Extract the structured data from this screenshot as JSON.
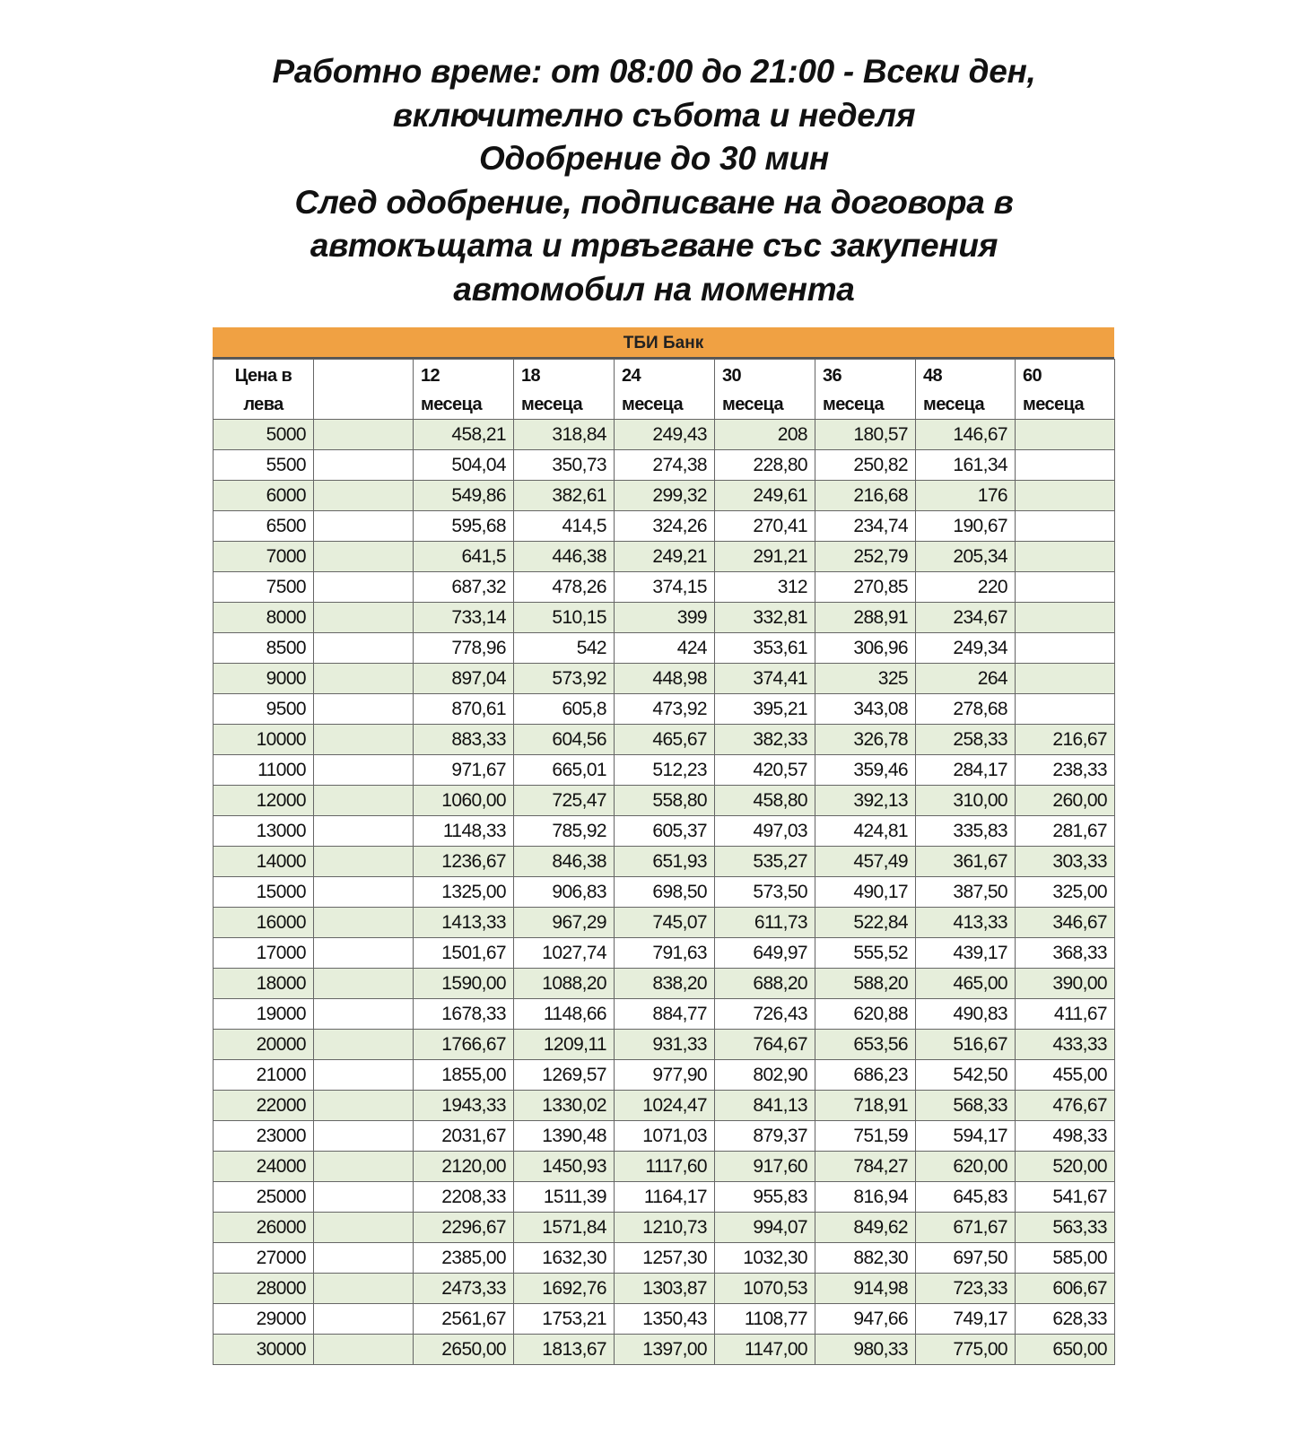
{
  "title_lines": [
    "Работно време: от 08:00 до 21:00 - Всеки ден,",
    "включително събота и неделя",
    "Одобрение до 30 мин",
    "След одобрение, подписване на договора в",
    "автокъщата и трвъгване със закупения",
    "автомобил на момента"
  ],
  "table": {
    "bank_name": "ТБИ Банк",
    "accent_color": "#f0a143",
    "row_stripe_color": "#e6eedb",
    "headers": [
      [
        "Цена в",
        "лева"
      ],
      [
        "",
        ""
      ],
      [
        "12",
        "месеца"
      ],
      [
        "18",
        "месеца"
      ],
      [
        "24",
        "месеца"
      ],
      [
        "30",
        "месеца"
      ],
      [
        "36",
        "месеца"
      ],
      [
        "48",
        "месеца"
      ],
      [
        "60",
        "месеца"
      ]
    ],
    "rows": [
      [
        "5000",
        "",
        "458,21",
        "318,84",
        "249,43",
        "208",
        "180,57",
        "146,67",
        ""
      ],
      [
        "5500",
        "",
        "504,04",
        "350,73",
        "274,38",
        "228,80",
        "250,82",
        "161,34",
        ""
      ],
      [
        "6000",
        "",
        "549,86",
        "382,61",
        "299,32",
        "249,61",
        "216,68",
        "176",
        ""
      ],
      [
        "6500",
        "",
        "595,68",
        "414,5",
        "324,26",
        "270,41",
        "234,74",
        "190,67",
        ""
      ],
      [
        "7000",
        "",
        "641,5",
        "446,38",
        "249,21",
        "291,21",
        "252,79",
        "205,34",
        ""
      ],
      [
        "7500",
        "",
        "687,32",
        "478,26",
        "374,15",
        "312",
        "270,85",
        "220",
        ""
      ],
      [
        "8000",
        "",
        "733,14",
        "510,15",
        "399",
        "332,81",
        "288,91",
        "234,67",
        ""
      ],
      [
        "8500",
        "",
        "778,96",
        "542",
        "424",
        "353,61",
        "306,96",
        "249,34",
        ""
      ],
      [
        "9000",
        "",
        "897,04",
        "573,92",
        "448,98",
        "374,41",
        "325",
        "264",
        ""
      ],
      [
        "9500",
        "",
        "870,61",
        "605,8",
        "473,92",
        "395,21",
        "343,08",
        "278,68",
        ""
      ],
      [
        "10000",
        "",
        "883,33",
        "604,56",
        "465,67",
        "382,33",
        "326,78",
        "258,33",
        "216,67"
      ],
      [
        "11000",
        "",
        "971,67",
        "665,01",
        "512,23",
        "420,57",
        "359,46",
        "284,17",
        "238,33"
      ],
      [
        "12000",
        "",
        "1060,00",
        "725,47",
        "558,80",
        "458,80",
        "392,13",
        "310,00",
        "260,00"
      ],
      [
        "13000",
        "",
        "1148,33",
        "785,92",
        "605,37",
        "497,03",
        "424,81",
        "335,83",
        "281,67"
      ],
      [
        "14000",
        "",
        "1236,67",
        "846,38",
        "651,93",
        "535,27",
        "457,49",
        "361,67",
        "303,33"
      ],
      [
        "15000",
        "",
        "1325,00",
        "906,83",
        "698,50",
        "573,50",
        "490,17",
        "387,50",
        "325,00"
      ],
      [
        "16000",
        "",
        "1413,33",
        "967,29",
        "745,07",
        "611,73",
        "522,84",
        "413,33",
        "346,67"
      ],
      [
        "17000",
        "",
        "1501,67",
        "1027,74",
        "791,63",
        "649,97",
        "555,52",
        "439,17",
        "368,33"
      ],
      [
        "18000",
        "",
        "1590,00",
        "1088,20",
        "838,20",
        "688,20",
        "588,20",
        "465,00",
        "390,00"
      ],
      [
        "19000",
        "",
        "1678,33",
        "1148,66",
        "884,77",
        "726,43",
        "620,88",
        "490,83",
        "411,67"
      ],
      [
        "20000",
        "",
        "1766,67",
        "1209,11",
        "931,33",
        "764,67",
        "653,56",
        "516,67",
        "433,33"
      ],
      [
        "21000",
        "",
        "1855,00",
        "1269,57",
        "977,90",
        "802,90",
        "686,23",
        "542,50",
        "455,00"
      ],
      [
        "22000",
        "",
        "1943,33",
        "1330,02",
        "1024,47",
        "841,13",
        "718,91",
        "568,33",
        "476,67"
      ],
      [
        "23000",
        "",
        "2031,67",
        "1390,48",
        "1071,03",
        "879,37",
        "751,59",
        "594,17",
        "498,33"
      ],
      [
        "24000",
        "",
        "2120,00",
        "1450,93",
        "1117,60",
        "917,60",
        "784,27",
        "620,00",
        "520,00"
      ],
      [
        "25000",
        "",
        "2208,33",
        "1511,39",
        "1164,17",
        "955,83",
        "816,94",
        "645,83",
        "541,67"
      ],
      [
        "26000",
        "",
        "2296,67",
        "1571,84",
        "1210,73",
        "994,07",
        "849,62",
        "671,67",
        "563,33"
      ],
      [
        "27000",
        "",
        "2385,00",
        "1632,30",
        "1257,30",
        "1032,30",
        "882,30",
        "697,50",
        "585,00"
      ],
      [
        "28000",
        "",
        "2473,33",
        "1692,76",
        "1303,87",
        "1070,53",
        "914,98",
        "723,33",
        "606,67"
      ],
      [
        "29000",
        "",
        "2561,67",
        "1753,21",
        "1350,43",
        "1108,77",
        "947,66",
        "749,17",
        "628,33"
      ],
      [
        "30000",
        "",
        "2650,00",
        "1813,67",
        "1397,00",
        "1147,00",
        "980,33",
        "775,00",
        "650,00"
      ]
    ]
  }
}
